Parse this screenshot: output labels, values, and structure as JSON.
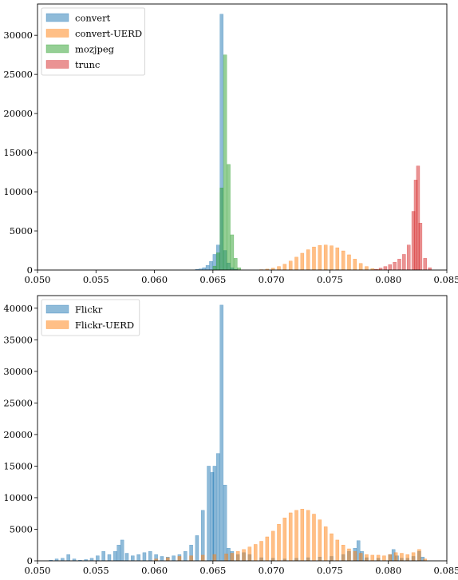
{
  "chart_data": [
    {
      "type": "histogram",
      "title": "",
      "xlabel": "",
      "ylabel": "",
      "xlim": [
        0.05,
        0.085
      ],
      "ylim": [
        0,
        34000
      ],
      "xticks": [
        "0.050",
        "0.055",
        "0.060",
        "0.065",
        "0.070",
        "0.075",
        "0.080",
        "0.085"
      ],
      "yticks": [
        "0",
        "5000",
        "10000",
        "15000",
        "20000",
        "25000",
        "30000"
      ],
      "grid": false,
      "legend_position": "top-left",
      "series": [
        {
          "name": "convert",
          "color": "#1f77b4",
          "bins": [
            [
              0.0635,
              80
            ],
            [
              0.0638,
              150
            ],
            [
              0.0641,
              300
            ],
            [
              0.0644,
              600
            ],
            [
              0.0647,
              1100
            ],
            [
              0.065,
              2000
            ],
            [
              0.0653,
              3200
            ],
            [
              0.0656,
              32700
            ],
            [
              0.0659,
              2500
            ],
            [
              0.0662,
              900
            ],
            [
              0.0665,
              300
            ],
            [
              0.0668,
              100
            ]
          ]
        },
        {
          "name": "convert-UERD",
          "color": "#ff7f0e",
          "bins": [
            [
              0.069,
              50
            ],
            [
              0.0695,
              120
            ],
            [
              0.07,
              250
            ],
            [
              0.0705,
              450
            ],
            [
              0.071,
              750
            ],
            [
              0.0715,
              1150
            ],
            [
              0.072,
              1650
            ],
            [
              0.0725,
              2150
            ],
            [
              0.073,
              2600
            ],
            [
              0.0735,
              2950
            ],
            [
              0.074,
              3150
            ],
            [
              0.0745,
              3200
            ],
            [
              0.075,
              3100
            ],
            [
              0.0755,
              2850
            ],
            [
              0.076,
              2450
            ],
            [
              0.0765,
              1950
            ],
            [
              0.077,
              1400
            ],
            [
              0.0775,
              850
            ],
            [
              0.078,
              450
            ],
            [
              0.0785,
              180
            ],
            [
              0.079,
              60
            ]
          ]
        },
        {
          "name": "mozjpeg",
          "color": "#2ca02c",
          "bins": [
            [
              0.065,
              500
            ],
            [
              0.0653,
              2200
            ],
            [
              0.0656,
              10500
            ],
            [
              0.0659,
              27500
            ],
            [
              0.0662,
              13500
            ],
            [
              0.0665,
              4500
            ],
            [
              0.0668,
              1500
            ],
            [
              0.0671,
              300
            ]
          ]
        },
        {
          "name": "trunc",
          "color": "#d62728",
          "bins": [
            [
              0.0788,
              100
            ],
            [
              0.0792,
              250
            ],
            [
              0.0796,
              450
            ],
            [
              0.08,
              700
            ],
            [
              0.0804,
              1000
            ],
            [
              0.0808,
              1400
            ],
            [
              0.0812,
              2000
            ],
            [
              0.0816,
              3200
            ],
            [
              0.082,
              7500
            ],
            [
              0.0822,
              11500
            ],
            [
              0.0824,
              13300
            ],
            [
              0.0826,
              6000
            ],
            [
              0.083,
              1500
            ],
            [
              0.0834,
              300
            ]
          ]
        }
      ]
    },
    {
      "type": "histogram",
      "title": "",
      "xlabel": "",
      "ylabel": "",
      "xlim": [
        0.05,
        0.085
      ],
      "ylim": [
        0,
        42000
      ],
      "xticks": [
        "0.050",
        "0.055",
        "0.060",
        "0.065",
        "0.070",
        "0.075",
        "0.080",
        "0.085"
      ],
      "yticks": [
        "0",
        "5000",
        "10000",
        "15000",
        "20000",
        "25000",
        "30000",
        "35000",
        "40000"
      ],
      "grid": false,
      "legend_position": "top-left",
      "series": [
        {
          "name": "Flickr",
          "color": "#1f77b4",
          "bins": [
            [
              0.051,
              100
            ],
            [
              0.0515,
              300
            ],
            [
              0.052,
              400
            ],
            [
              0.0525,
              1000
            ],
            [
              0.053,
              300
            ],
            [
              0.0535,
              100
            ],
            [
              0.054,
              200
            ],
            [
              0.0545,
              400
            ],
            [
              0.055,
              800
            ],
            [
              0.0555,
              1500
            ],
            [
              0.056,
              1000
            ],
            [
              0.0565,
              1500
            ],
            [
              0.0568,
              2500
            ],
            [
              0.0571,
              3300
            ],
            [
              0.0575,
              1200
            ],
            [
              0.058,
              800
            ],
            [
              0.0585,
              1000
            ],
            [
              0.059,
              1300
            ],
            [
              0.0595,
              1500
            ],
            [
              0.06,
              1000
            ],
            [
              0.0605,
              700
            ],
            [
              0.061,
              600
            ],
            [
              0.0615,
              800
            ],
            [
              0.062,
              1000
            ],
            [
              0.0625,
              1500
            ],
            [
              0.063,
              2500
            ],
            [
              0.0635,
              4000
            ],
            [
              0.064,
              8000
            ],
            [
              0.0645,
              15000
            ],
            [
              0.0648,
              14000
            ],
            [
              0.065,
              15000
            ],
            [
              0.0653,
              17000
            ],
            [
              0.0656,
              40500
            ],
            [
              0.0659,
              12000
            ],
            [
              0.0662,
              2000
            ],
            [
              0.0665,
              1500
            ],
            [
              0.067,
              1000
            ],
            [
              0.0675,
              1300
            ],
            [
              0.068,
              1000
            ],
            [
              0.069,
              500
            ],
            [
              0.07,
              400
            ],
            [
              0.071,
              300
            ],
            [
              0.072,
              400
            ],
            [
              0.073,
              500
            ],
            [
              0.074,
              600
            ],
            [
              0.075,
              700
            ],
            [
              0.076,
              1000
            ],
            [
              0.0765,
              1500
            ],
            [
              0.077,
              2000
            ],
            [
              0.0773,
              3200
            ],
            [
              0.0776,
              1500
            ],
            [
              0.078,
              500
            ],
            [
              0.079,
              400
            ],
            [
              0.08,
              1000
            ],
            [
              0.0803,
              1800
            ],
            [
              0.0806,
              800
            ],
            [
              0.081,
              400
            ],
            [
              0.0815,
              400
            ],
            [
              0.082,
              700
            ],
            [
              0.0825,
              1500
            ],
            [
              0.0828,
              600
            ]
          ]
        },
        {
          "name": "Flickr-UERD",
          "color": "#ff7f0e",
          "bins": [
            [
              0.06,
              300
            ],
            [
              0.061,
              500
            ],
            [
              0.062,
              700
            ],
            [
              0.063,
              800
            ],
            [
              0.064,
              900
            ],
            [
              0.065,
              1000
            ],
            [
              0.066,
              1100
            ],
            [
              0.0665,
              1200
            ],
            [
              0.067,
              1500
            ],
            [
              0.0675,
              1800
            ],
            [
              0.068,
              2200
            ],
            [
              0.0685,
              2600
            ],
            [
              0.069,
              3100
            ],
            [
              0.0695,
              3800
            ],
            [
              0.07,
              4700
            ],
            [
              0.0705,
              5800
            ],
            [
              0.071,
              6800
            ],
            [
              0.0715,
              7600
            ],
            [
              0.072,
              8000
            ],
            [
              0.0725,
              8200
            ],
            [
              0.073,
              8000
            ],
            [
              0.0735,
              7400
            ],
            [
              0.074,
              6500
            ],
            [
              0.0745,
              5400
            ],
            [
              0.075,
              4300
            ],
            [
              0.0755,
              3300
            ],
            [
              0.076,
              2500
            ],
            [
              0.0765,
              1900
            ],
            [
              0.077,
              1500
            ],
            [
              0.0775,
              1200
            ],
            [
              0.078,
              1000
            ],
            [
              0.0785,
              900
            ],
            [
              0.079,
              900
            ],
            [
              0.0795,
              800
            ],
            [
              0.08,
              1000
            ],
            [
              0.0805,
              1300
            ],
            [
              0.081,
              1200
            ],
            [
              0.0815,
              1000
            ],
            [
              0.082,
              1300
            ],
            [
              0.0825,
              1800
            ],
            [
              0.083,
              300
            ]
          ]
        }
      ]
    }
  ]
}
